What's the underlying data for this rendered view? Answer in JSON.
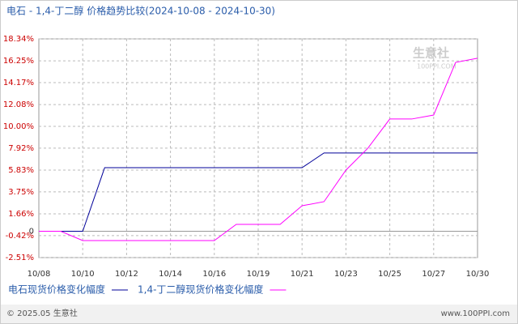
{
  "chart_data": {
    "type": "line",
    "title": "电石 - 1,4-丁二醇 价格趋势比较(2024-10-08 - 2024-10-30)",
    "watermark": "生意社",
    "watermark_url": "100PPI.COM",
    "footer_left": "© 2025.05 生意社",
    "footer_right": "www.100PPI.com",
    "categories": [
      "10/08",
      null,
      "10/10",
      null,
      "10/12",
      null,
      "10/14",
      null,
      "10/16",
      null,
      "10/19",
      null,
      "10/21",
      null,
      "10/23",
      null,
      "10/25",
      null,
      "10/27",
      null,
      "10/30"
    ],
    "series": [
      {
        "name": "电石现货价格变化幅度",
        "color": "#000099",
        "values": [
          0,
          0,
          0,
          6.06,
          6.06,
          6.06,
          6.06,
          6.06,
          6.06,
          6.06,
          6.06,
          6.06,
          6.06,
          7.46,
          7.46,
          7.46,
          7.46,
          7.46,
          7.46,
          7.46,
          7.46
        ]
      },
      {
        "name": "1,4-丁二醇现货价格变化幅度",
        "color": "#ff00ff",
        "values": [
          0,
          0,
          -0.89,
          -0.89,
          -0.89,
          -0.89,
          -0.89,
          -0.89,
          -0.89,
          0.66,
          0.66,
          0.66,
          2.43,
          2.82,
          5.83,
          7.92,
          10.7,
          10.7,
          11.08,
          16.1,
          16.5
        ]
      }
    ],
    "ylim": [
      -2.51,
      18.34
    ],
    "yticks": [
      {
        "value": -2.51,
        "label": "-2.51%"
      },
      {
        "value": -0.42,
        "label": "-0.42%"
      },
      0,
      {
        "value": 1.66,
        "label": "1.66%"
      },
      {
        "value": 3.75,
        "label": "3.75%"
      },
      {
        "value": 5.83,
        "label": "5.83%"
      },
      {
        "value": 7.92,
        "label": "7.92%"
      },
      {
        "value": 10.0,
        "label": "10.00%"
      },
      {
        "value": 12.08,
        "label": "12.08%"
      },
      {
        "value": 14.17,
        "label": "14.17%"
      },
      {
        "value": 16.25,
        "label": "16.25%"
      },
      {
        "value": 18.34,
        "label": "18.34%"
      }
    ],
    "grid": true
  }
}
